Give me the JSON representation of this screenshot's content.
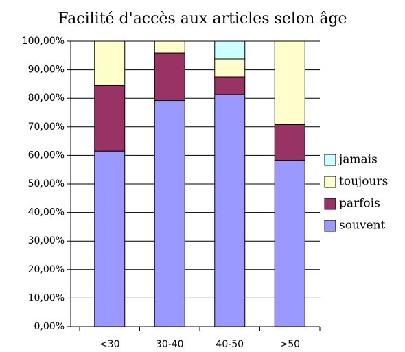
{
  "chart_data": {
    "type": "bar",
    "stacked": true,
    "title": "Facilité d'accès aux articles selon âge",
    "categories": [
      "<30",
      "30-40",
      "40-50",
      ">50"
    ],
    "series": [
      {
        "name": "souvent",
        "color": "#9999ff",
        "values": [
          61.5,
          79.2,
          81.25,
          58.3
        ]
      },
      {
        "name": "parfois",
        "color": "#993366",
        "values": [
          23,
          16.7,
          6.25,
          12.5
        ]
      },
      {
        "name": "toujours",
        "color": "#ffffcc",
        "values": [
          15.5,
          4.1,
          6.25,
          29.2
        ]
      },
      {
        "name": "jamais",
        "color": "#ccffff",
        "values": [
          0,
          0,
          6.25,
          0
        ]
      }
    ],
    "ylim": [
      0,
      100
    ],
    "yticks": [
      {
        "value": 0,
        "label": "0,00%"
      },
      {
        "value": 10,
        "label": "10,00%"
      },
      {
        "value": 20,
        "label": "20,00%"
      },
      {
        "value": 30,
        "label": "30,00%"
      },
      {
        "value": 40,
        "label": "40,00%"
      },
      {
        "value": 50,
        "label": "50,00%"
      },
      {
        "value": 60,
        "label": "60,00%"
      },
      {
        "value": 70,
        "label": "70,00%"
      },
      {
        "value": 80,
        "label": "80,00%"
      },
      {
        "value": 90,
        "label": "90,00%"
      },
      {
        "value": 100,
        "label": "100,00%"
      }
    ],
    "grid": true,
    "legend": "right"
  }
}
